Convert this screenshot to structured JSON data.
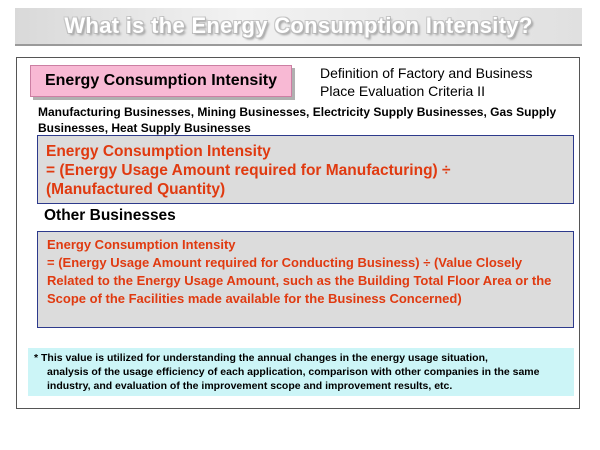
{
  "header": {
    "title": "What is the Energy Consumption Intensity?"
  },
  "badge": {
    "label": "Energy Consumption Intensity"
  },
  "definition": {
    "line1": "Definition of Factory and Business",
    "line2": "Place Evaluation Criteria II"
  },
  "manufacturing": {
    "intro": "Manufacturing Businesses, Mining Businesses, Electricity Supply Businesses, Gas Supply Businesses, Heat Supply Businesses",
    "formula_title": "Energy Consumption Intensity",
    "formula_line1": "= (Energy Usage Amount required for Manufacturing) ÷",
    "formula_line2": "(Manufactured Quantity)"
  },
  "other": {
    "heading": "Other Businesses",
    "formula_title": "Energy Consumption Intensity",
    "formula_body": "= (Energy Usage Amount required for Conducting Business) ÷ (Value Closely Related to the Energy Usage Amount, such as the Building Total Floor Area or the Scope of the Facilities made available for the Business Concerned)"
  },
  "note": {
    "line1": "* This value is utilized for understanding the annual changes in the energy usage situation,",
    "line2": "analysis of the usage efficiency of each application, comparison with other companies in the same industry, and evaluation of the improvement scope and improvement results, etc."
  },
  "colors": {
    "badge_bg": "#f8b9d4",
    "formula_text": "#e03a10",
    "formula_box_bg": "#dcdcdc",
    "formula_box_border": "#2d3a8c",
    "note_bg": "#ccf5f7"
  }
}
